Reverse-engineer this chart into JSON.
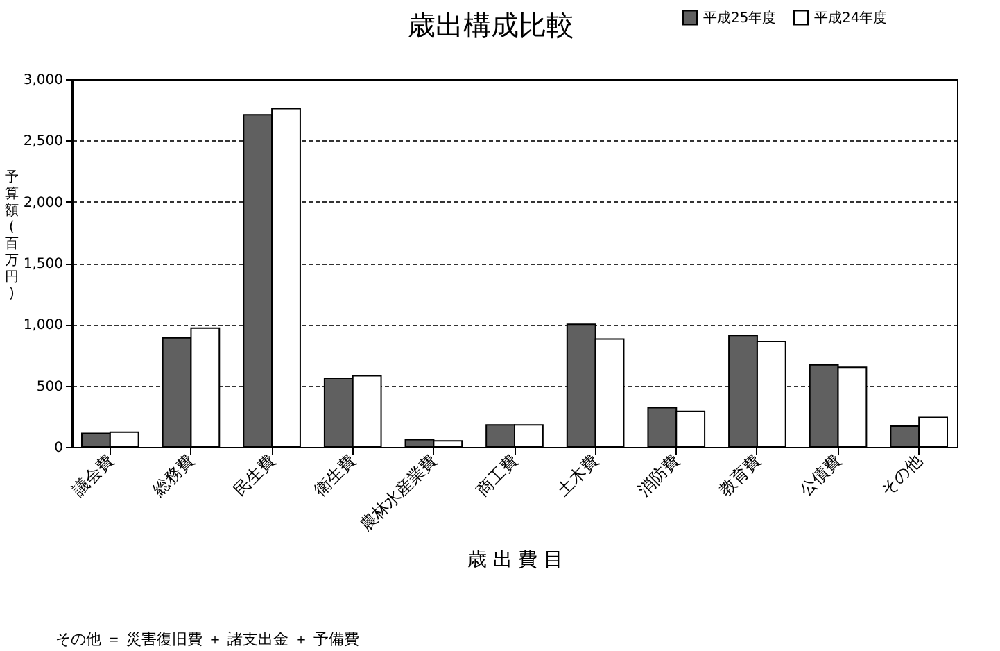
{
  "chart_data": {
    "type": "bar",
    "title": "歳出構成比較",
    "xlabel": "歳 出 費 目",
    "ylabel": "予算額(百万円)",
    "categories": [
      "議会費",
      "総務費",
      "民生費",
      "衛生費",
      "農林水産業費",
      "商工費",
      "土木費",
      "消防費",
      "教育費",
      "公債費",
      "その他"
    ],
    "series": [
      {
        "name": "平成25年度",
        "color": "#606060",
        "values": [
          110,
          890,
          2710,
          560,
          60,
          180,
          1000,
          320,
          910,
          670,
          170
        ]
      },
      {
        "name": "平成24年度",
        "color": "#ffffff",
        "values": [
          120,
          970,
          2760,
          580,
          50,
          180,
          880,
          290,
          860,
          650,
          240
        ]
      }
    ],
    "ylim": [
      0,
      3000
    ],
    "yticks": [
      {
        "value": 0,
        "label": "0"
      },
      {
        "value": 500,
        "label": "500"
      },
      {
        "value": 1000,
        "label": "1,000"
      },
      {
        "value": 1500,
        "label": "1,500"
      },
      {
        "value": 2000,
        "label": "2,000"
      },
      {
        "value": 2500,
        "label": "2,500"
      },
      {
        "value": 3000,
        "label": "3,000"
      }
    ],
    "grid": "y",
    "legend": "top right",
    "annotations": [
      "その他 ＝ 災害復旧費 ＋ 諸支出金 ＋ 予備費"
    ]
  }
}
